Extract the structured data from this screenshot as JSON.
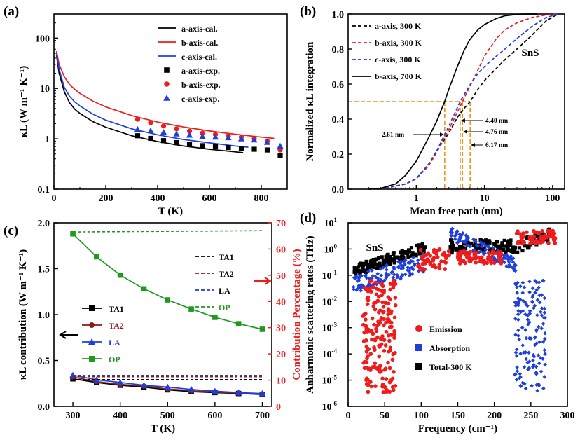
{
  "colors": {
    "black": "#000000",
    "red": "#ee1c1c",
    "blue": "#1f3fdc",
    "green": "#1f9a1f",
    "orange": "#f39019",
    "brown": "#8b1a1a"
  },
  "chart_data": [
    {
      "panel": "(a)",
      "type": "line",
      "xlabel": "T (K)",
      "ylabel": "κL (W m⁻¹ K⁻¹)",
      "xlim": [
        0,
        900
      ],
      "ylim": [
        0.1,
        300
      ],
      "y_scale": "log",
      "xticks": [
        "0",
        "200",
        "400",
        "600",
        "800"
      ],
      "yticks": [
        "0.1",
        "1",
        "10",
        "100"
      ],
      "legend_position": "top-right",
      "legend": [
        "a-axis-cal.",
        "b-axis-cal.",
        "c-axis-cal.",
        "a-axis-exp.",
        "b-axis-exp.",
        "c-axis-exp."
      ],
      "series": [
        {
          "name": "a-axis-cal.",
          "color": "black",
          "kind": "line",
          "x": [
            10,
            20,
            40,
            60,
            80,
            100,
            150,
            200,
            300,
            400,
            500,
            600,
            700,
            730
          ],
          "y": [
            45,
            20,
            8.6,
            5.2,
            3.9,
            3.2,
            2.2,
            1.7,
            1.15,
            0.88,
            0.72,
            0.62,
            0.55,
            0.53
          ]
        },
        {
          "name": "b-axis-cal.",
          "color": "red",
          "kind": "line",
          "x": [
            10,
            20,
            40,
            60,
            80,
            100,
            150,
            200,
            300,
            400,
            500,
            600,
            700,
            800,
            850
          ],
          "y": [
            55,
            30,
            17,
            12,
            9.6,
            8.0,
            5.6,
            4.3,
            2.9,
            2.15,
            1.72,
            1.43,
            1.23,
            1.08,
            1.02
          ]
        },
        {
          "name": "c-axis-cal.",
          "color": "blue",
          "kind": "line",
          "x": [
            10,
            20,
            40,
            60,
            80,
            100,
            150,
            200,
            300,
            400,
            500,
            600,
            700,
            750
          ],
          "y": [
            50,
            24,
            10.5,
            7.0,
            5.4,
            4.5,
            3.1,
            2.35,
            1.58,
            1.2,
            0.97,
            0.83,
            0.72,
            0.68
          ]
        },
        {
          "name": "a-axis-exp.",
          "color": "black",
          "kind": "square",
          "x": [
            323,
            373,
            423,
            473,
            523,
            573,
            623,
            673,
            723,
            773,
            823,
            873
          ],
          "y": [
            1.15,
            1.02,
            0.92,
            0.84,
            0.78,
            0.73,
            0.7,
            0.67,
            0.64,
            0.62,
            0.6,
            0.46
          ]
        },
        {
          "name": "b-axis-exp.",
          "color": "red",
          "kind": "circle",
          "x": [
            323,
            373,
            423,
            473,
            523,
            573,
            623,
            673,
            723,
            773,
            823,
            873
          ],
          "y": [
            2.45,
            2.1,
            1.8,
            1.58,
            1.42,
            1.3,
            1.22,
            1.15,
            1.08,
            1.0,
            0.9,
            0.6
          ]
        },
        {
          "name": "c-axis-exp.",
          "color": "blue",
          "kind": "triangle",
          "x": [
            323,
            373,
            423,
            473,
            523,
            573,
            623,
            673,
            723,
            773,
            823,
            873
          ],
          "y": [
            1.55,
            1.45,
            1.35,
            1.25,
            1.18,
            1.12,
            1.08,
            1.05,
            1.0,
            0.95,
            0.85,
            0.72
          ]
        }
      ]
    },
    {
      "panel": "(b)",
      "type": "line",
      "xlabel": "Mean free path (nm)",
      "ylabel": "Normalized κL integration",
      "xlim": [
        0.1,
        150
      ],
      "x_scale": "log",
      "ylim": [
        0,
        1
      ],
      "xticks": [
        "1",
        "10",
        "100"
      ],
      "yticks": [
        "0.0",
        "0.2",
        "0.4",
        "0.6",
        "0.8",
        "1.0"
      ],
      "legend_position": "top-left",
      "annotation": "SnS",
      "series": [
        {
          "name": "a-axis, 300 K",
          "color": "black",
          "dash": true,
          "x": [
            0.2,
            0.4,
            0.7,
            1,
            1.5,
            2,
            3,
            4,
            5,
            6.17,
            8,
            10,
            15,
            20,
            30,
            50,
            80,
            120
          ],
          "y": [
            0,
            0.01,
            0.03,
            0.06,
            0.14,
            0.22,
            0.32,
            0.41,
            0.46,
            0.5,
            0.57,
            0.62,
            0.69,
            0.74,
            0.8,
            0.88,
            0.96,
            1.0
          ]
        },
        {
          "name": "b-axis, 300 K",
          "color": "red",
          "dash": true,
          "x": [
            0.2,
            0.4,
            0.7,
            1,
            1.5,
            2,
            3,
            4,
            4.76,
            6,
            8,
            10,
            15,
            20,
            30,
            50,
            80,
            120
          ],
          "y": [
            0,
            0.01,
            0.03,
            0.06,
            0.13,
            0.21,
            0.34,
            0.44,
            0.5,
            0.58,
            0.68,
            0.76,
            0.86,
            0.91,
            0.95,
            0.98,
            0.995,
            1.0
          ]
        },
        {
          "name": "c-axis, 300 K",
          "color": "blue",
          "dash": true,
          "x": [
            0.2,
            0.4,
            0.7,
            1,
            1.5,
            2,
            3,
            4.4,
            6,
            8,
            10,
            15,
            20,
            30,
            50,
            80,
            120
          ],
          "y": [
            0,
            0.01,
            0.03,
            0.06,
            0.14,
            0.22,
            0.36,
            0.5,
            0.59,
            0.66,
            0.7,
            0.76,
            0.8,
            0.86,
            0.93,
            0.98,
            1.0
          ]
        },
        {
          "name": "b-axis, 700 K",
          "color": "black",
          "dash": false,
          "x": [
            0.2,
            0.3,
            0.5,
            0.7,
            1,
            1.5,
            2,
            2.61,
            3,
            4,
            5,
            6,
            8,
            10,
            15,
            20,
            30,
            40,
            60
          ],
          "y": [
            0,
            0.005,
            0.03,
            0.08,
            0.16,
            0.29,
            0.39,
            0.5,
            0.57,
            0.7,
            0.79,
            0.85,
            0.91,
            0.94,
            0.975,
            0.99,
            0.998,
            1.0,
            1.0
          ]
        }
      ],
      "reference_lines": {
        "y": 0.5,
        "x": [
          2.61,
          4.4,
          4.76,
          6.17
        ]
      },
      "annotations": [
        "2.61 nm",
        "4.40 nm",
        "4.76 nm",
        "6.17 nm"
      ]
    },
    {
      "panel": "(c)",
      "type": "line",
      "xlabel": "T (K)",
      "ylabel": "κL contribution (W m⁻¹ K⁻¹)",
      "ylabel_right": "Contribution Percentage (%)",
      "xlim": [
        260,
        720
      ],
      "ylim": [
        0,
        2.0
      ],
      "ylim_right": [
        0,
        70
      ],
      "xticks": [
        "300",
        "400",
        "500",
        "600",
        "700"
      ],
      "yticks": [
        "0.0",
        "0.5",
        "1.0",
        "1.5",
        "2.0"
      ],
      "yticks_right": [
        "0",
        "10",
        "20",
        "30",
        "40",
        "50",
        "60",
        "70"
      ],
      "legend_right_axis": [
        "TA1",
        "TA2",
        "LA",
        "OP"
      ],
      "legend_left_axis": [
        "TA1",
        "TA2",
        "LA",
        "OP"
      ],
      "series": [
        {
          "name": "TA1",
          "color": "black",
          "axis": "left",
          "marker": "square",
          "x": [
            300,
            350,
            400,
            450,
            500,
            550,
            600,
            650,
            700
          ],
          "y": [
            0.3,
            0.26,
            0.23,
            0.21,
            0.18,
            0.16,
            0.15,
            0.14,
            0.13
          ]
        },
        {
          "name": "TA2",
          "color": "brown",
          "axis": "left",
          "marker": "circle",
          "x": [
            300,
            350,
            400,
            450,
            500,
            550,
            600,
            650,
            700
          ],
          "y": [
            0.32,
            0.27,
            0.24,
            0.22,
            0.19,
            0.17,
            0.155,
            0.145,
            0.135
          ]
        },
        {
          "name": "LA",
          "color": "blue",
          "axis": "left",
          "marker": "triangle",
          "x": [
            300,
            350,
            400,
            450,
            500,
            550,
            600,
            650,
            700
          ],
          "y": [
            0.34,
            0.29,
            0.26,
            0.23,
            0.21,
            0.185,
            0.165,
            0.15,
            0.14
          ]
        },
        {
          "name": "OP",
          "color": "green",
          "axis": "left",
          "marker": "square",
          "x": [
            300,
            350,
            400,
            450,
            500,
            550,
            600,
            650,
            700
          ],
          "y": [
            1.88,
            1.63,
            1.43,
            1.28,
            1.16,
            1.06,
            0.97,
            0.9,
            0.84
          ]
        },
        {
          "name": "TA1",
          "color": "black",
          "axis": "right",
          "dash": true,
          "x": [
            300,
            700
          ],
          "y": [
            10.2,
            10.2
          ]
        },
        {
          "name": "TA2",
          "color": "brown",
          "axis": "right",
          "dash": true,
          "x": [
            300,
            700
          ],
          "y": [
            11.3,
            11.3
          ]
        },
        {
          "name": "LA",
          "color": "blue",
          "axis": "right",
          "dash": true,
          "x": [
            300,
            700
          ],
          "y": [
            11.8,
            11.8
          ]
        },
        {
          "name": "OP",
          "color": "green",
          "axis": "right",
          "dash": true,
          "x": [
            300,
            700
          ],
          "y": [
            66.5,
            67.0
          ]
        }
      ]
    },
    {
      "panel": "(d)",
      "type": "scatter",
      "xlabel": "Frequency (cm⁻¹)",
      "ylabel": "Anharmonic scattering rates (THz)",
      "xlim": [
        0,
        300
      ],
      "ylim": [
        1e-06,
        10
      ],
      "y_scale": "log",
      "xticks": [
        "0",
        "50",
        "100",
        "150",
        "200",
        "250",
        "300"
      ],
      "yticks": [
        "10-6",
        "10-5",
        "10-4",
        "10-3",
        "10-2",
        "10-1",
        "100",
        "101"
      ],
      "annotation": "SnS",
      "legend": [
        "Emission",
        "Absorption",
        "Total-300 K"
      ],
      "legend_position": "center-left",
      "series": [
        {
          "name": "Total-300 K",
          "color": "black",
          "marker": "square"
        },
        {
          "name": "Absorption",
          "color": "blue",
          "marker": "diamond"
        },
        {
          "name": "Emission",
          "color": "red",
          "marker": "circle"
        }
      ]
    }
  ]
}
